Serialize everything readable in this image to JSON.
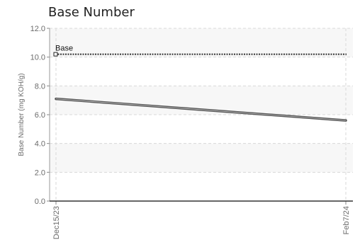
{
  "chart_data": {
    "type": "line",
    "title": "Base Number",
    "ylabel": "Base Number (mg KOH/g)",
    "xlabel": "",
    "ylim": [
      0,
      12
    ],
    "yticks": [
      "0.0",
      "2.0",
      "4.0",
      "6.0",
      "8.0",
      "10.0",
      "12.0"
    ],
    "x": [
      "Dec15/23",
      "Feb7/24"
    ],
    "grid": true,
    "series": [
      {
        "values": [
          7.1,
          5.6
        ],
        "color": "#555555"
      }
    ],
    "reference_lines": [
      {
        "label": "Base",
        "value": 10.2,
        "color": "#333333"
      }
    ],
    "band_color": "#f7f7f7",
    "grid_color": "#d8d8d8"
  }
}
